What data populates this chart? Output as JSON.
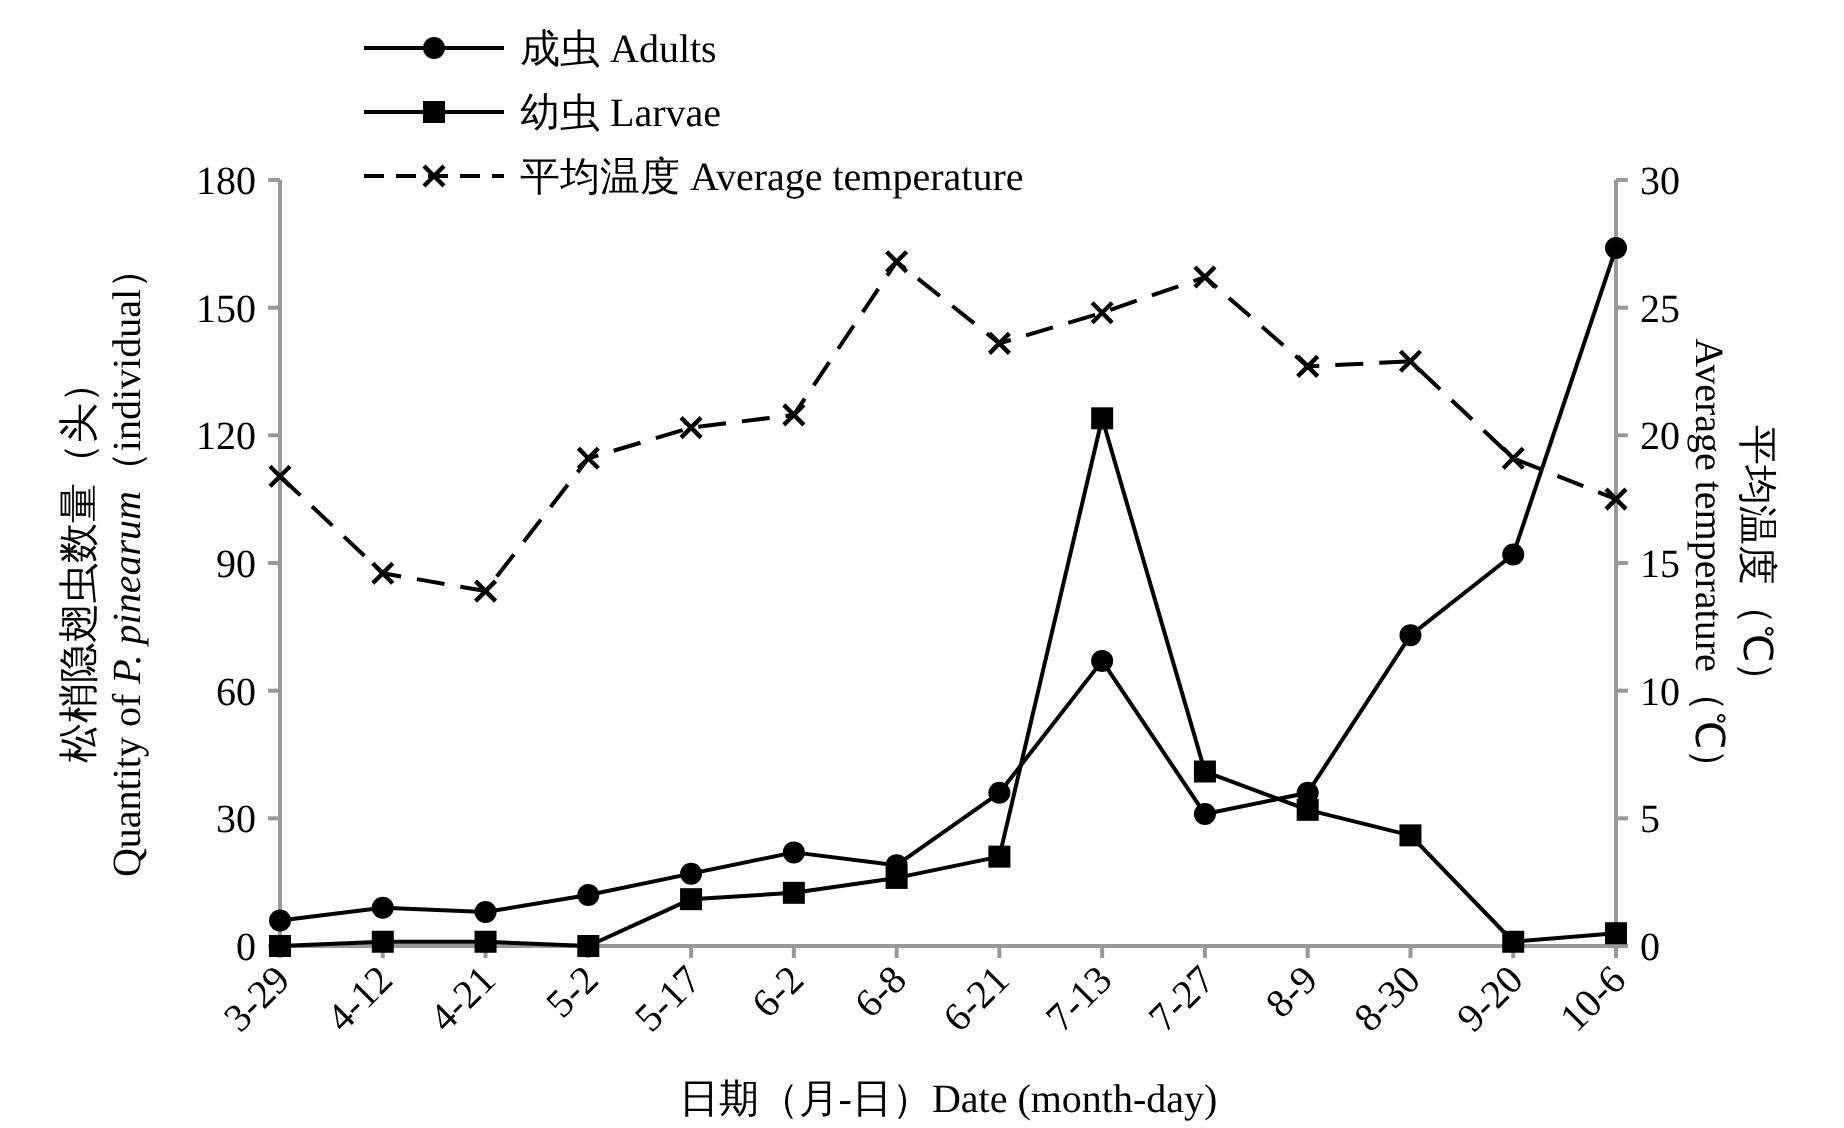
{
  "chart_data": {
    "type": "line",
    "xlabel": "日期（月-日）Date (month-day)",
    "ylabel": "松梢隐翅虫数量（头）\nQuantity of *P. pinearum*（individual）",
    "y2label": "平均温度（℃）\nAverage temperature（℃）",
    "categories": [
      "3-29",
      "4-12",
      "4-21",
      "5-2",
      "5-17",
      "6-2",
      "6-8",
      "6-21",
      "7-13",
      "7-27",
      "8-9",
      "8-30",
      "9-20",
      "10-6"
    ],
    "series": [
      {
        "name": "成虫 Adults",
        "color": "#000000",
        "marker": "circle",
        "line_style": "solid",
        "values": [
          6,
          9,
          8,
          12,
          17,
          22,
          19,
          36,
          67,
          31,
          36,
          73,
          92,
          164
        ]
      },
      {
        "name": "幼虫 Larvae",
        "color": "#000000",
        "marker": "square",
        "line_style": "solid",
        "values": [
          0,
          1,
          1,
          0,
          11,
          12.5,
          16,
          21,
          124,
          41,
          32,
          26,
          1,
          3
        ]
      },
      {
        "name": "平均温度 Average temperature",
        "color": "#000000",
        "marker": "cross",
        "line_style": "dashed",
        "axis": "y2",
        "values": [
          18.4,
          14.6,
          13.9,
          19.1,
          20.3,
          20.8,
          26.8,
          23.6,
          24.8,
          26.2,
          22.7,
          22.9,
          19.1,
          17.5
        ]
      }
    ],
    "ylim": [
      0,
      180
    ],
    "yticks": [
      0,
      30,
      60,
      90,
      120,
      150,
      180
    ],
    "y2lim": [
      0,
      30
    ],
    "y2ticks": [
      0,
      5,
      10,
      15,
      20,
      25,
      30
    ],
    "grid": false,
    "legend": "top"
  }
}
